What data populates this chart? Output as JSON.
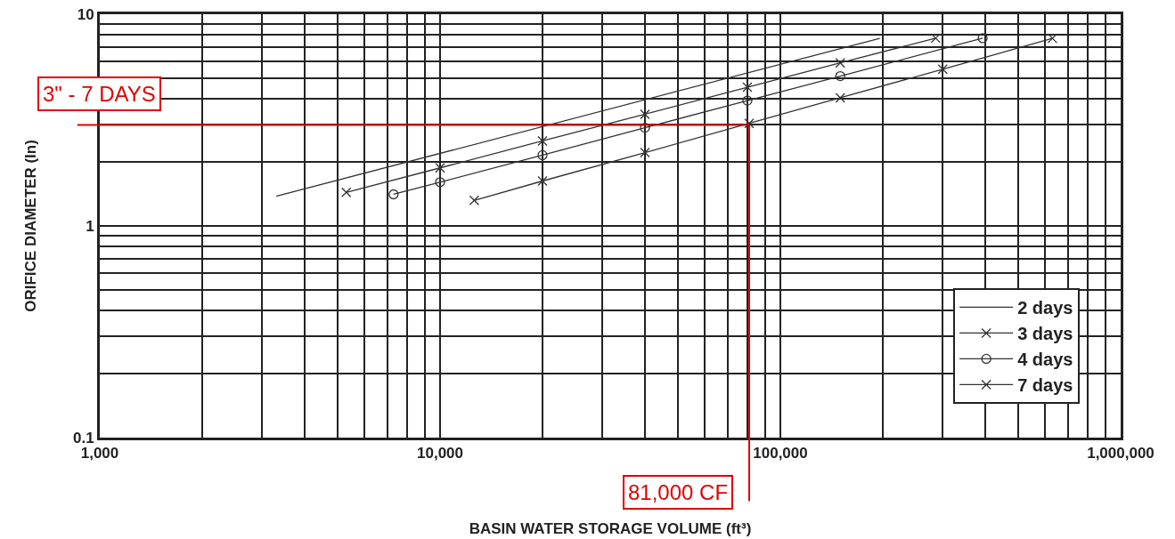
{
  "chart_data": {
    "type": "line",
    "xlabel": "BASIN WATER STORAGE VOLUME (ft³)",
    "ylabel": "ORIFICE DIAMETER (In)",
    "log": "xy",
    "grid": true,
    "legend": "bottom right",
    "line_style": "solid",
    "xlim": [
      1000,
      1000000
    ],
    "ylim": [
      0.1,
      10
    ],
    "xticks": [
      {
        "value": 1000,
        "label": "1,000"
      },
      {
        "value": 2000,
        "label": null
      },
      {
        "value": 3000,
        "label": null
      },
      {
        "value": 4000,
        "label": null
      },
      {
        "value": 5000,
        "label": null
      },
      {
        "value": 6000,
        "label": null
      },
      {
        "value": 7000,
        "label": null
      },
      {
        "value": 8000,
        "label": null
      },
      {
        "value": 9000,
        "label": null
      },
      {
        "value": 10000,
        "label": "10,000"
      },
      {
        "value": 20000,
        "label": null
      },
      {
        "value": 30000,
        "label": null
      },
      {
        "value": 40000,
        "label": null
      },
      {
        "value": 50000,
        "label": null
      },
      {
        "value": 60000,
        "label": null
      },
      {
        "value": 70000,
        "label": null
      },
      {
        "value": 80000,
        "label": null
      },
      {
        "value": 90000,
        "label": null
      },
      {
        "value": 100000,
        "label": "100,000"
      },
      {
        "value": 200000,
        "label": null
      },
      {
        "value": 300000,
        "label": null
      },
      {
        "value": 400000,
        "label": null
      },
      {
        "value": 500000,
        "label": null
      },
      {
        "value": 600000,
        "label": null
      },
      {
        "value": 700000,
        "label": null
      },
      {
        "value": 800000,
        "label": null
      },
      {
        "value": 900000,
        "label": null
      },
      {
        "value": 1000000,
        "label": "1,000,000"
      }
    ],
    "yticks": [
      0.1,
      {
        "value": 0.2,
        "label": null
      },
      {
        "value": 0.3,
        "label": null
      },
      {
        "value": 0.4,
        "label": null
      },
      {
        "value": 0.5,
        "label": null
      },
      {
        "value": 0.6,
        "label": null
      },
      {
        "value": 0.7,
        "label": null
      },
      {
        "value": 0.8,
        "label": null
      },
      {
        "value": 0.9,
        "label": null
      },
      1,
      {
        "value": 2,
        "label": null
      },
      {
        "value": 3,
        "label": null
      },
      {
        "value": 4,
        "label": null
      },
      {
        "value": 5,
        "label": null
      },
      {
        "value": 6,
        "label": null
      },
      {
        "value": 7,
        "label": null
      },
      {
        "value": 8,
        "label": null
      },
      {
        "value": 9,
        "label": null
      },
      10
    ],
    "series": [
      {
        "name": "2 days",
        "color": "#333333",
        "marker": "none",
        "x": [
          3300,
          196000
        ],
        "values": [
          1.38,
          7.7
        ]
      },
      {
        "name": "3 days",
        "color": "#333333",
        "marker": "cross",
        "x": [
          5300,
          10000,
          20000,
          40000,
          80000,
          150000,
          286000
        ],
        "values": [
          1.44,
          1.88,
          2.52,
          3.37,
          4.52,
          5.89,
          7.71
        ]
      },
      {
        "name": "4 days",
        "color": "#333333",
        "marker": "circle",
        "x": [
          7300,
          10000,
          20000,
          40000,
          80000,
          150000,
          393000
        ],
        "values": [
          1.41,
          1.61,
          2.16,
          2.91,
          3.91,
          5.1,
          7.71
        ]
      },
      {
        "name": "7 days",
        "color": "#333333",
        "marker": "cross",
        "x": [
          12600,
          20000,
          40000,
          81000,
          150000,
          300000,
          630000
        ],
        "values": [
          1.32,
          1.63,
          2.22,
          3.05,
          4.03,
          5.5,
          7.69
        ]
      }
    ],
    "ref_lines": [
      {
        "axis": "y",
        "value": 3,
        "label": "3\" - 7 DAYS",
        "color": "#e00000"
      },
      {
        "axis": "x",
        "value": 81000,
        "label": "81,000 CF",
        "color": "#e00000"
      }
    ]
  }
}
